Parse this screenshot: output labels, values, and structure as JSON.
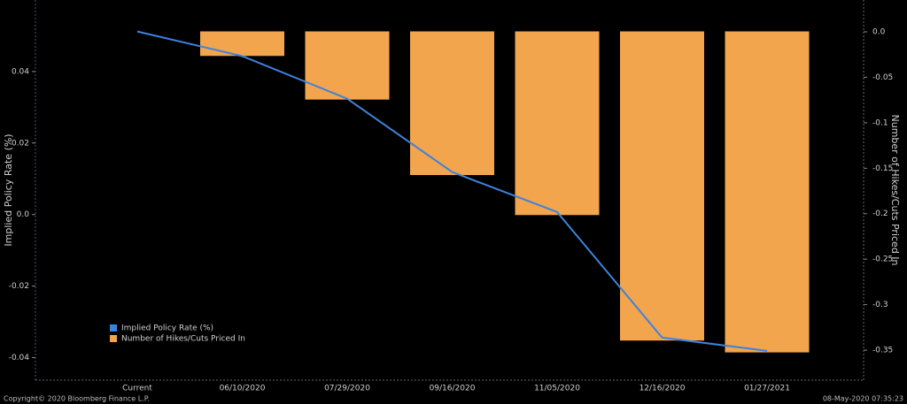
{
  "chart_data": {
    "type": "bar-line",
    "footer_left": "Copyright© 2020 Bloomberg Finance L.P.",
    "footer_right": "08-May-2020 07:35:23",
    "y_label": "Implied Policy Rate (%)",
    "y2_label": "Number of Hikes/Cuts Priced In",
    "categories": [
      "Current",
      "06/10/2020",
      "07/29/2020",
      "09/16/2020",
      "11/05/2020",
      "12/16/2020",
      "01/27/2021"
    ],
    "ylim": [
      -0.0463,
      0.06
    ],
    "yticks": [
      {
        "value": -0.04,
        "label": "-0.04"
      },
      {
        "value": -0.02,
        "label": "-0.02"
      },
      {
        "value": 0,
        "label": "0.0"
      },
      0.02,
      0.04
    ],
    "y2lim": [
      -0.383,
      0.035
    ],
    "y2ticks": [
      -0.35,
      -0.3,
      -0.25,
      -0.2,
      -0.15,
      -0.1,
      -0.05,
      {
        "value": 0,
        "label": "0.0"
      }
    ],
    "series": [
      {
        "name": "Implied Policy Rate (%)",
        "type": "line",
        "color": "#3d82dc",
        "axis": "y",
        "values": [
          0.0512,
          0.0443,
          0.0324,
          0.0119,
          0.0007,
          -0.0344,
          -0.0381
        ]
      },
      {
        "name": "Number of Hikes/Cuts Priced In",
        "type": "bar",
        "color": "#f2a54c",
        "axis": "y2",
        "values": [
          0,
          -0.026,
          -0.074,
          -0.157,
          -0.201,
          -0.339,
          -0.352
        ]
      }
    ]
  }
}
